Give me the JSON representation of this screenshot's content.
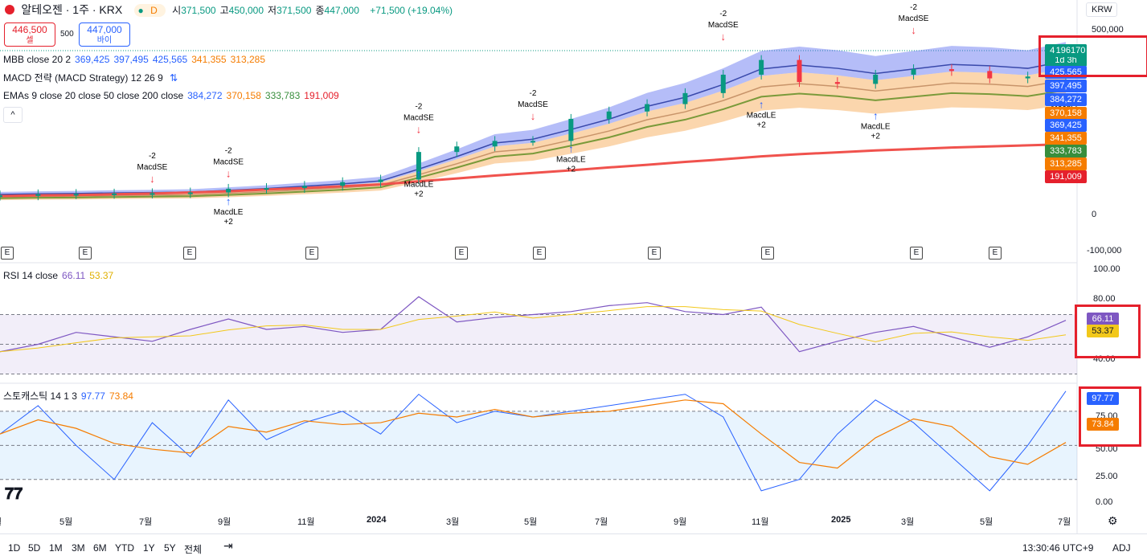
{
  "header": {
    "title": "알테오젠 · 1주 · KRX",
    "badge": "D",
    "ohlc": [
      {
        "label": "시",
        "value": "371,500"
      },
      {
        "label": "고",
        "value": "450,000"
      },
      {
        "label": "저",
        "value": "371,500"
      },
      {
        "label": "종",
        "value": "447,000"
      }
    ],
    "change": "+71,500 (+19.04%)",
    "sell_price": "446,500",
    "sell_label": "셀",
    "spread": "500",
    "buy_price": "447,000",
    "buy_label": "바이",
    "currency": "KRW"
  },
  "legends": {
    "mbb": {
      "name": "MBB close 20 2",
      "values": [
        "369,425",
        "397,495",
        "425,565",
        "341,355",
        "313,285"
      ],
      "colors": [
        "#2962ff",
        "#2962ff",
        "#2962ff",
        "#f57c00",
        "#f57c00"
      ]
    },
    "macd": {
      "name": "MACD 전략 (MACD Strategy) 12 26 9"
    },
    "emas": {
      "name": "EMAs 9 close 20 close 50 close 200 close",
      "values": [
        "384,272",
        "370,158",
        "333,783",
        "191,009"
      ],
      "colors": [
        "#2962ff",
        "#f57c00",
        "#388e3c",
        "#e5202c"
      ]
    },
    "rsi": {
      "name": "RSI 14 close",
      "values": [
        "66.11",
        "53.37"
      ],
      "colors": [
        "#7e57c2",
        "#e0b000"
      ]
    },
    "stoch": {
      "name": "스토캐스틱 14 1 3",
      "values": [
        "97.77",
        "73.84"
      ],
      "colors": [
        "#2962ff",
        "#f57c00"
      ]
    }
  },
  "price_axis": {
    "ticks": [
      "500,000",
      "0",
      "-100,000"
    ],
    "tags": [
      {
        "text": "447,000",
        "color": "#089981"
      },
      {
        "text": "1d 3h",
        "color": "#089981"
      },
      {
        "text": "425,565",
        "color": "#2962ff"
      },
      {
        "text": "397,495",
        "color": "#2962ff"
      },
      {
        "text": "384,272",
        "color": "#2962ff"
      },
      {
        "text": "370,158",
        "color": "#f57c00"
      },
      {
        "text": "369,425",
        "color": "#2962ff"
      },
      {
        "text": "341,355",
        "color": "#f57c00"
      },
      {
        "text": "333,783",
        "color": "#388e3c"
      },
      {
        "text": "313,285",
        "color": "#f57c00"
      },
      {
        "text": "191,009",
        "color": "#e5202c"
      }
    ],
    "volume_tag": "196170"
  },
  "rsi_axis": {
    "ticks": [
      "100.00",
      "80.00",
      "60.00",
      "40.00"
    ],
    "tags": [
      "66.11",
      "53.37"
    ]
  },
  "stoch_axis": {
    "ticks": [
      "75.00",
      "50.00",
      "25.00",
      "0.00"
    ],
    "tags": [
      "97.77",
      "73.84"
    ]
  },
  "time_axis": [
    "월",
    "5월",
    "7월",
    "9월",
    "11월",
    "2024",
    "3월",
    "5월",
    "7월",
    "9월",
    "11월",
    "2025",
    "3월",
    "5월",
    "7월"
  ],
  "earnings_label": "E",
  "signals": {
    "short": "MacdSE",
    "short_qty": "-2",
    "long": "MacdLE",
    "long_qty": "+2",
    "long_short": "Mac",
    "long_short2": "MacdSE"
  },
  "bottom": {
    "ranges": [
      "1D",
      "5D",
      "1M",
      "3M",
      "6M",
      "YTD",
      "1Y",
      "5Y",
      "전체"
    ],
    "time": "13:30:46 UTC+9",
    "adj": "ADJ"
  },
  "chart_data": {
    "type": "line",
    "title": "알테오젠 · 1주 · KRX",
    "x": [
      "2023-03",
      "2023-04",
      "2023-05",
      "2023-06",
      "2023-07",
      "2023-08",
      "2023-09",
      "2023-10",
      "2023-11",
      "2023-12",
      "2024-01",
      "2024-02",
      "2024-03",
      "2024-04",
      "2024-05",
      "2024-06",
      "2024-07",
      "2024-08",
      "2024-09",
      "2024-10",
      "2024-11",
      "2024-12",
      "2025-01",
      "2025-02",
      "2025-03",
      "2025-04",
      "2025-05",
      "2025-06",
      "2025-07"
    ],
    "ylim": [
      -100000,
      500000
    ],
    "series": [
      {
        "name": "close",
        "values": [
          52000,
          55000,
          56000,
          57000,
          58000,
          60000,
          70000,
          72000,
          78000,
          88000,
          95000,
          170000,
          185000,
          200000,
          200000,
          260000,
          280000,
          300000,
          330000,
          380000,
          420000,
          360000,
          355000,
          380000,
          395000,
          390000,
          370000,
          375000,
          447000
        ]
      },
      {
        "name": "EMAs 200 close",
        "values": [
          50000,
          52000,
          53000,
          55000,
          57000,
          60000,
          63000,
          68000,
          72000,
          77000,
          82000,
          90000,
          98000,
          106000,
          113000,
          120000,
          128000,
          135000,
          143000,
          150000,
          158000,
          164000,
          169000,
          174000,
          178000,
          182000,
          185000,
          188000,
          191009
        ]
      }
    ],
    "rsi": {
      "ylim": [
        30,
        100
      ],
      "values": [
        45,
        50,
        58,
        55,
        52,
        60,
        67,
        60,
        62,
        58,
        60,
        82,
        65,
        68,
        70,
        72,
        76,
        78,
        72,
        70,
        75,
        45,
        52,
        58,
        62,
        55,
        48,
        55,
        66.11
      ]
    },
    "stochastic": {
      "ylim": [
        0,
        100
      ],
      "values": [
        60,
        85,
        50,
        20,
        70,
        40,
        90,
        55,
        70,
        80,
        60,
        95,
        70,
        80,
        75,
        80,
        85,
        90,
        95,
        75,
        10,
        20,
        60,
        90,
        70,
        40,
        10,
        50,
        97.77
      ]
    }
  }
}
